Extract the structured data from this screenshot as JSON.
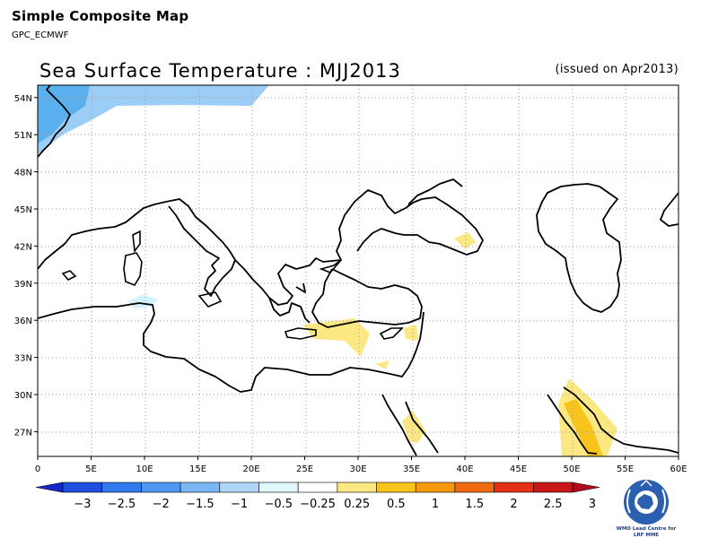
{
  "header": {
    "title": "Simple Composite Map",
    "subtitle": "GPC_ECMWF"
  },
  "map": {
    "title": "Sea Surface Temperature : MJJ2013",
    "issued": "(issued on Apr2013)",
    "variable": "Sea Surface Temperature",
    "period": "MJJ2013",
    "projection": "lat-lon",
    "lon_range": [
      0,
      60
    ],
    "lat_range": [
      25,
      55
    ],
    "grid": true,
    "lat_ticks": [
      "54N",
      "51N",
      "48N",
      "45N",
      "42N",
      "39N",
      "36N",
      "33N",
      "30N",
      "27N"
    ],
    "lat_values": [
      54,
      51,
      48,
      45,
      42,
      39,
      36,
      33,
      30,
      27
    ],
    "lon_ticks": [
      "0",
      "5E",
      "10E",
      "15E",
      "20E",
      "25E",
      "30E",
      "35E",
      "40E",
      "45E",
      "50E",
      "55E",
      "60E"
    ],
    "lon_values": [
      0,
      5,
      10,
      15,
      20,
      25,
      30,
      35,
      40,
      45,
      50,
      55,
      60
    ],
    "anomaly_regions": [
      {
        "region": "North Atlantic / North Sea",
        "category": "-1.5 to -1",
        "color": "#5ab0ee"
      },
      {
        "region": "North Atlantic / North Sea",
        "category": "-1 to -0.5",
        "color": "#9bcdf6"
      },
      {
        "region": "West Mediterranean (Sardinia-Tunisia)",
        "category": "-0.5 to -0.25",
        "color": "#d5f3fb"
      },
      {
        "region": "East Mediterranean (Crete-Cyprus)",
        "category": "0.25 to 0.5",
        "color": "#fbe882"
      },
      {
        "region": "Black Sea (east)",
        "category": "0.25 to 0.5",
        "color": "#fbe882"
      },
      {
        "region": "Red Sea (Gulf of Suez/Aqaba)",
        "category": "0.25 to 0.5",
        "color": "#fbe882"
      },
      {
        "region": "Persian Gulf",
        "category": "0.25 to 0.5",
        "color": "#fbe882"
      },
      {
        "region": "Persian Gulf (south)",
        "category": "0.5 to 1",
        "color": "#f8c31a"
      }
    ]
  },
  "colorbar": {
    "labels": [
      "−3",
      "−2.5",
      "−2",
      "−1.5",
      "−1",
      "−0.5",
      "−0.25",
      "0.25",
      "0.5",
      "1",
      "1.5",
      "2",
      "2.5",
      "3"
    ],
    "colors": [
      "#1428c8",
      "#1e4fe0",
      "#2f78ee",
      "#4d98f2",
      "#7ab6f4",
      "#aed6f7",
      "#dff6fb",
      "#ffffff",
      "#fbe882",
      "#f8c31a",
      "#f59a0c",
      "#ef6a10",
      "#e53018",
      "#c81818",
      "#b00a1e"
    ]
  },
  "logo": {
    "line1": "WMO Lead Centre for",
    "line2": "LRF MME",
    "icon": "wmo-emblem-icon"
  }
}
